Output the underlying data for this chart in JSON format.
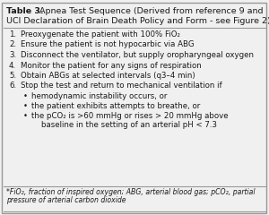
{
  "bg_color": "#f0f0f0",
  "border_color": "#999999",
  "text_color": "#1a1a1a",
  "title_bold": "Table 3.",
  "title_line1_rest": " Apnea Test Sequence (Derived from reference 9 and",
  "title_line2": "UCI Declaration of Brain Death Policy and Form - see Figure 2)",
  "numbered_items": [
    "Preoxygenate the patient with 100% FiO₂",
    "Ensure the patient is not hypocarbic via ABG",
    "Disconnect the ventilator, but supply oropharyngeal oxygen",
    "Monitor the patient for any signs of respiration",
    "Obtain ABGs at selected intervals (q3–4 min)",
    "Stop the test and return to mechanical ventilation if"
  ],
  "bullets": [
    "hemodynamic instability occurs, or",
    "the patient exhibits attempts to breathe, or",
    "the pCO₂ is >60 mmHg or rises > 20 mmHg above\n    baseline in the setting of an arterial pH < 7.3"
  ],
  "footnote_line1": "*FiO₂, fraction of inspired oxygen; ABG, arterial blood gas; pCO₂, partial",
  "footnote_line2": "pressure of arterial carbon dioxide",
  "title_fontsize": 6.8,
  "body_fontsize": 6.2,
  "footnote_fontsize": 5.6
}
